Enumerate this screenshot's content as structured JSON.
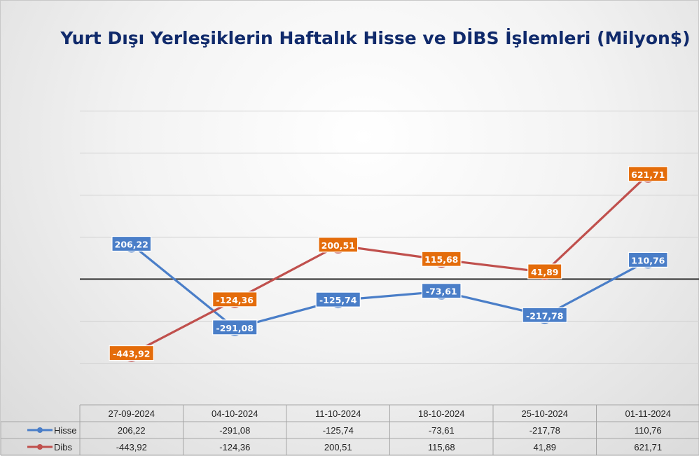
{
  "chart_data": {
    "type": "line",
    "title": "Yurt Dışı Yerleşiklerin Haftalık Hisse ve DİBS İşlemleri (Milyon$)",
    "categories": [
      "27-09-2024",
      "04-10-2024",
      "11-10-2024",
      "18-10-2024",
      "25-10-2024",
      "01-11-2024"
    ],
    "series": [
      {
        "name": "Hisse",
        "color": "#4a7ec8",
        "label_color": "#4a7ec8",
        "values": [
          206.22,
          -291.08,
          -125.74,
          -73.61,
          -217.78,
          110.76
        ],
        "labels": [
          "206,22",
          "-291,08",
          "-125,74",
          "-73,61",
          "-217,78",
          "110,76"
        ]
      },
      {
        "name": "Dibs",
        "color": "#c0504d",
        "label_color": "#e46c0a",
        "values": [
          -443.92,
          -124.36,
          200.51,
          115.68,
          41.89,
          621.71
        ],
        "labels": [
          "-443,92",
          "-124,36",
          "200,51",
          "115,68",
          "41,89",
          "621,71"
        ]
      }
    ],
    "ylim": [
      -500,
      1000
    ],
    "gridlines": [
      -500,
      -250,
      0,
      250,
      500,
      750,
      1000
    ],
    "legend": "data-table",
    "axis_line_color": "#404040",
    "grid_color": "#d0d0d0",
    "title_color": "#102a6b"
  }
}
